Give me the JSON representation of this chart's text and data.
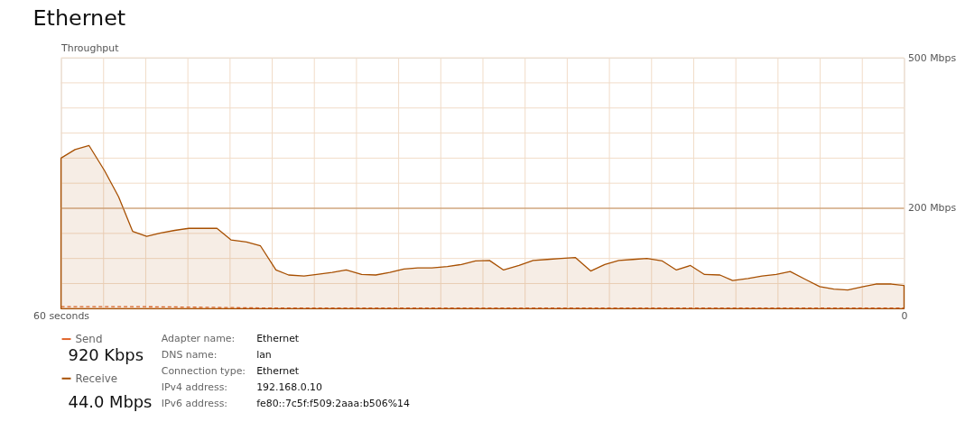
{
  "chart_data": {
    "type": "area",
    "title": "Ethernet",
    "ylabel": "Throughput",
    "x": [
      60,
      59,
      58,
      56.9,
      55.9,
      54.9,
      53.9,
      52.9,
      51.9,
      50.9,
      49.9,
      48.9,
      47.9,
      46.8,
      45.8,
      44.7,
      43.8,
      42.7,
      41.8,
      40.7,
      39.7,
      38.6,
      37.6,
      36.6,
      35.6,
      34.6,
      33.6,
      32.5,
      31.5,
      30.5,
      29.5,
      28.5,
      27.4,
      26.4,
      25.4,
      24.4,
      23.4,
      22.3,
      21.3,
      20.3,
      19.3,
      18.3,
      17.2,
      16.2,
      15.2,
      14.2,
      13.1,
      12.2,
      11.1,
      10.1,
      9.1,
      8.1,
      7,
      6,
      5,
      4,
      2.9,
      2,
      0.9,
      0
    ],
    "series": [
      {
        "name": "Send",
        "type": "line",
        "line_style": "dashed",
        "color": "#e0642a",
        "x": [
          60,
          55,
          51,
          45,
          30,
          20,
          0
        ],
        "values": [
          4,
          4,
          3,
          1,
          1,
          1,
          1
        ]
      },
      {
        "name": "Receive",
        "color": "#a74f01",
        "values": [
          300,
          317,
          325,
          275,
          223,
          154,
          144,
          151,
          156,
          160,
          160,
          160,
          137,
          133,
          125,
          77,
          67,
          65,
          68,
          72,
          77,
          68,
          67,
          72,
          79,
          81,
          81,
          84,
          88,
          95,
          96,
          77,
          86,
          96,
          98,
          100,
          102,
          75,
          88,
          96,
          98,
          100,
          95,
          77,
          86,
          68,
          67,
          56,
          60,
          65,
          68,
          74,
          58,
          44,
          39,
          37,
          44,
          49,
          49,
          46
        ]
      }
    ],
    "xlim": [
      60,
      0
    ],
    "xticks": [
      {
        "value": 60,
        "label": "60 seconds"
      },
      {
        "value": 57,
        "label": null
      },
      {
        "value": 54,
        "label": null
      },
      {
        "value": 51,
        "label": null
      },
      {
        "value": 48,
        "label": null
      },
      {
        "value": 45,
        "label": null
      },
      {
        "value": 42,
        "label": null
      },
      {
        "value": 39,
        "label": null
      },
      {
        "value": 36,
        "label": null
      },
      {
        "value": 33,
        "label": null
      },
      {
        "value": 30,
        "label": null
      },
      {
        "value": 27,
        "label": null
      },
      {
        "value": 24,
        "label": null
      },
      {
        "value": 21,
        "label": null
      },
      {
        "value": 18,
        "label": null
      },
      {
        "value": 15,
        "label": null
      },
      {
        "value": 12,
        "label": null
      },
      {
        "value": 9,
        "label": null
      },
      {
        "value": 6,
        "label": null
      },
      {
        "value": 3,
        "label": null
      },
      {
        "value": 0,
        "label": "0"
      }
    ],
    "ylim": [
      0,
      500
    ],
    "yticks": [
      {
        "value": 0,
        "label": null
      },
      {
        "value": 50,
        "label": null
      },
      {
        "value": 100,
        "label": null
      },
      {
        "value": 150,
        "label": null
      },
      {
        "value": 200,
        "label": "200 Mbps"
      },
      {
        "value": 250,
        "label": null
      },
      {
        "value": 300,
        "label": null
      },
      {
        "value": 350,
        "label": null
      },
      {
        "value": 400,
        "label": null
      },
      {
        "value": 450,
        "label": null
      },
      {
        "value": 500,
        "label": "500 Mbps"
      }
    ],
    "ref_lines": [
      {
        "axis": "y",
        "value": 200,
        "color": "#c08a5a"
      }
    ],
    "grid": true,
    "legend": "bottom left",
    "annotations": [
      "920 Kbps",
      "44.0 Mbps",
      "Adapter name:",
      "Ethernet",
      "DNS name:",
      "lan",
      "Connection type:",
      "Ethernet",
      "IPv4 address:",
      "192.168.0.10",
      "IPv6 address:",
      "fe80::7c5f:f509:2aaa:b506%14"
    ]
  }
}
